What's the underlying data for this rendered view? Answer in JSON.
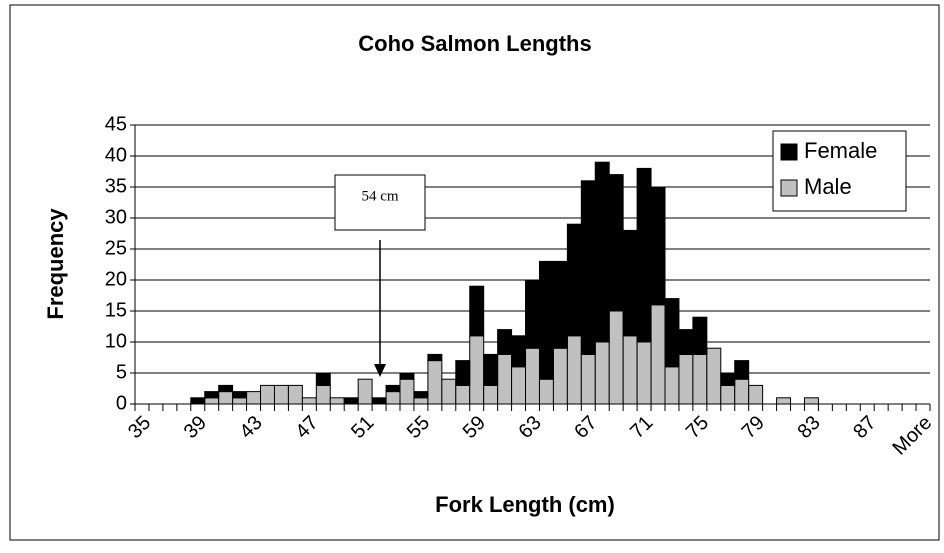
{
  "chart_data": {
    "type": "stacked_bar",
    "title": "Coho Salmon Lengths",
    "x_label": "Fork Length (cm)",
    "y_label": "Frequency",
    "annotation": "54 cm",
    "categories": [
      "35",
      null,
      null,
      null,
      "39",
      null,
      null,
      null,
      "43",
      null,
      null,
      null,
      "47",
      null,
      null,
      null,
      "51",
      null,
      null,
      null,
      "55",
      null,
      null,
      null,
      "59",
      null,
      null,
      null,
      "63",
      null,
      null,
      null,
      "67",
      null,
      null,
      null,
      "71",
      null,
      null,
      null,
      "75",
      null,
      null,
      null,
      "79",
      null,
      null,
      null,
      "83",
      null,
      null,
      null,
      "87",
      null,
      null,
      null,
      "More"
    ],
    "series": [
      {
        "name": "Male",
        "color": "#c0c0c0",
        "values": [
          0,
          0,
          0,
          0,
          0,
          1,
          2,
          1,
          2,
          3,
          3,
          3,
          1,
          3,
          1,
          0,
          4,
          0,
          2,
          4,
          1,
          7,
          4,
          3,
          11,
          3,
          8,
          6,
          9,
          4,
          9,
          11,
          8,
          10,
          15,
          11,
          10,
          16,
          6,
          8,
          8,
          9,
          3,
          4,
          3,
          0,
          1,
          0,
          1,
          0,
          0,
          0,
          0,
          0,
          0,
          0,
          0
        ]
      },
      {
        "name": "Female",
        "color": "#000000",
        "values": [
          0,
          0,
          0,
          0,
          1,
          1,
          1,
          1,
          0,
          0,
          0,
          0,
          0,
          2,
          0,
          1,
          0,
          1,
          1,
          1,
          1,
          1,
          0,
          4,
          8,
          5,
          4,
          5,
          11,
          19,
          14,
          18,
          28,
          29,
          22,
          17,
          28,
          19,
          11,
          4,
          6,
          0,
          2,
          3,
          0,
          0,
          0,
          0,
          0,
          0,
          0,
          0,
          0,
          0,
          0,
          0,
          0
        ]
      }
    ],
    "legend_order": [
      1,
      0
    ],
    "ylim": [
      0,
      45
    ],
    "yticks": [
      0,
      5,
      10,
      15,
      20,
      25,
      30,
      35,
      40,
      45
    ],
    "grid": true
  }
}
